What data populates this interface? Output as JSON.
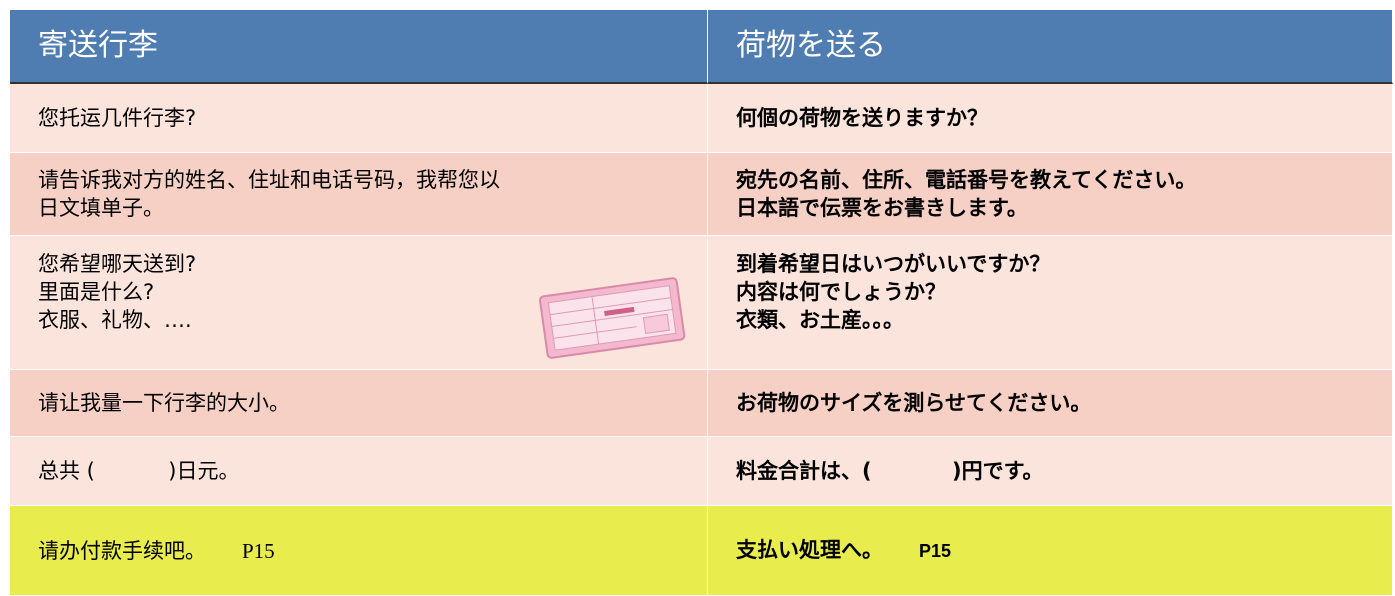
{
  "table": {
    "header": [
      "寄送行李",
      "荷物を送る"
    ],
    "rows": [
      {
        "zh": [
          "您托运几件行李?"
        ],
        "ja": [
          "何個の荷物を送りますか？"
        ]
      },
      {
        "zh": [
          "请告诉我对方的姓名、住址和电话号码，我帮您以",
          "日文填单子。"
        ],
        "ja": [
          "宛先の名前、住所、電話番号を教えてください。",
          "日本語で伝票をお書きします。"
        ]
      },
      {
        "zh": [
          "您希望哪天送到?",
          "里面是什么?",
          "衣服、礼物、…."
        ],
        "ja": [
          "到着希望日はいつがいいですか？",
          "内容は何でしょうか？",
          "衣類、お土産。。。"
        ]
      },
      {
        "zh": [
          "请让我量一下行李的大小。"
        ],
        "ja": [
          "お荷物のサイズを測らせてください。"
        ]
      },
      {
        "zh": [
          "总共 (           )日元。"
        ],
        "ja": [
          "料金合計は、(           )円です。"
        ]
      },
      {
        "zh": [
          "请办付款手续吧。"
        ],
        "zh_ref": "P15",
        "ja": [
          "支払い処理へ。"
        ],
        "ja_ref": "P15"
      }
    ]
  }
}
